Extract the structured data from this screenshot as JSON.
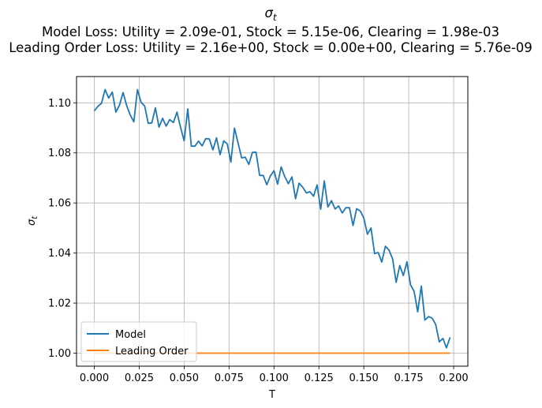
{
  "chart_data": {
    "type": "line",
    "title": {
      "symbol_base": "σ",
      "symbol_sub": "t",
      "line2": "Model Loss: Utility = 2.09e-01, Stock = 5.15e-06, Clearing = 1.98e-03",
      "line3": "Leading Order Loss: Utility = 2.16e+00, Stock = 0.00e+00, Clearing = 5.76e-09"
    },
    "xlabel": "T",
    "ylabel": {
      "base": "σ",
      "sub": "t"
    },
    "xlim": [
      -0.0099,
      0.2079
    ],
    "ylim": [
      0.9948,
      1.1105
    ],
    "xticks": [
      0.0,
      0.025,
      0.05,
      0.075,
      0.1,
      0.125,
      0.15,
      0.175,
      0.2
    ],
    "xtick_labels": [
      "0.000",
      "0.025",
      "0.050",
      "0.075",
      "0.100",
      "0.125",
      "0.150",
      "0.175",
      "0.200"
    ],
    "yticks": [
      1.0,
      1.02,
      1.04,
      1.06,
      1.08,
      1.1
    ],
    "ytick_labels": [
      "1.00",
      "1.02",
      "1.04",
      "1.06",
      "1.08",
      "1.10"
    ],
    "grid": true,
    "legend_position": "lower-left",
    "series": [
      {
        "name": "Model",
        "color": "#1f77b4",
        "x": [
          0.0,
          0.002,
          0.004,
          0.006,
          0.008,
          0.01,
          0.012,
          0.014,
          0.016,
          0.018,
          0.02,
          0.022,
          0.024,
          0.026,
          0.028,
          0.03,
          0.032,
          0.034,
          0.036,
          0.038,
          0.04,
          0.042,
          0.044,
          0.046,
          0.048,
          0.05,
          0.052,
          0.054,
          0.056,
          0.058,
          0.06,
          0.062,
          0.064,
          0.066,
          0.068,
          0.07,
          0.072,
          0.074,
          0.076,
          0.078,
          0.08,
          0.082,
          0.084,
          0.086,
          0.088,
          0.09,
          0.092,
          0.094,
          0.096,
          0.098,
          0.1,
          0.102,
          0.104,
          0.106,
          0.108,
          0.11,
          0.112,
          0.114,
          0.116,
          0.118,
          0.12,
          0.122,
          0.124,
          0.126,
          0.128,
          0.13,
          0.132,
          0.134,
          0.136,
          0.138,
          0.14,
          0.142,
          0.144,
          0.146,
          0.148,
          0.15,
          0.152,
          0.154,
          0.156,
          0.158,
          0.16,
          0.162,
          0.164,
          0.166,
          0.168,
          0.17,
          0.172,
          0.174,
          0.176,
          0.178,
          0.18,
          0.182,
          0.184,
          0.186,
          0.188,
          0.19,
          0.192,
          0.194,
          0.196,
          0.198
        ],
        "y": [
          1.0968,
          1.0986,
          1.0998,
          1.1053,
          1.1019,
          1.1043,
          1.0963,
          1.0991,
          1.1041,
          1.0989,
          1.0951,
          1.0924,
          1.1053,
          1.1002,
          1.0988,
          1.0918,
          1.092,
          1.098,
          1.0903,
          1.0938,
          1.0907,
          1.0933,
          1.0921,
          1.0963,
          1.0902,
          1.0848,
          1.0976,
          1.0827,
          1.0827,
          1.0847,
          1.0828,
          1.0857,
          1.0856,
          1.0812,
          1.086,
          1.0793,
          1.0848,
          1.0836,
          1.0763,
          1.0899,
          1.084,
          1.078,
          1.0783,
          1.0754,
          1.0802,
          1.0803,
          1.071,
          1.071,
          1.0673,
          1.0708,
          1.0729,
          1.0675,
          1.0744,
          1.0705,
          1.0677,
          1.0704,
          1.0617,
          1.0679,
          1.0663,
          1.064,
          1.0645,
          1.0627,
          1.0672,
          1.0575,
          1.0688,
          1.0584,
          1.0609,
          1.0576,
          1.0588,
          1.056,
          1.0581,
          1.0581,
          1.051,
          1.0577,
          1.0568,
          1.054,
          1.0475,
          1.05,
          1.0398,
          1.0402,
          1.0364,
          1.0427,
          1.0412,
          1.0377,
          1.0283,
          1.035,
          1.031,
          1.0365,
          1.0273,
          1.0247,
          1.0165,
          1.0268,
          1.0132,
          1.0146,
          1.014,
          1.0115,
          1.0045,
          1.0059,
          1.0021,
          1.0063
        ]
      },
      {
        "name": "Leading Order",
        "color": "#ff7f0e",
        "x": [
          0.0,
          0.198
        ],
        "y": [
          1.0,
          1.0
        ]
      }
    ]
  }
}
